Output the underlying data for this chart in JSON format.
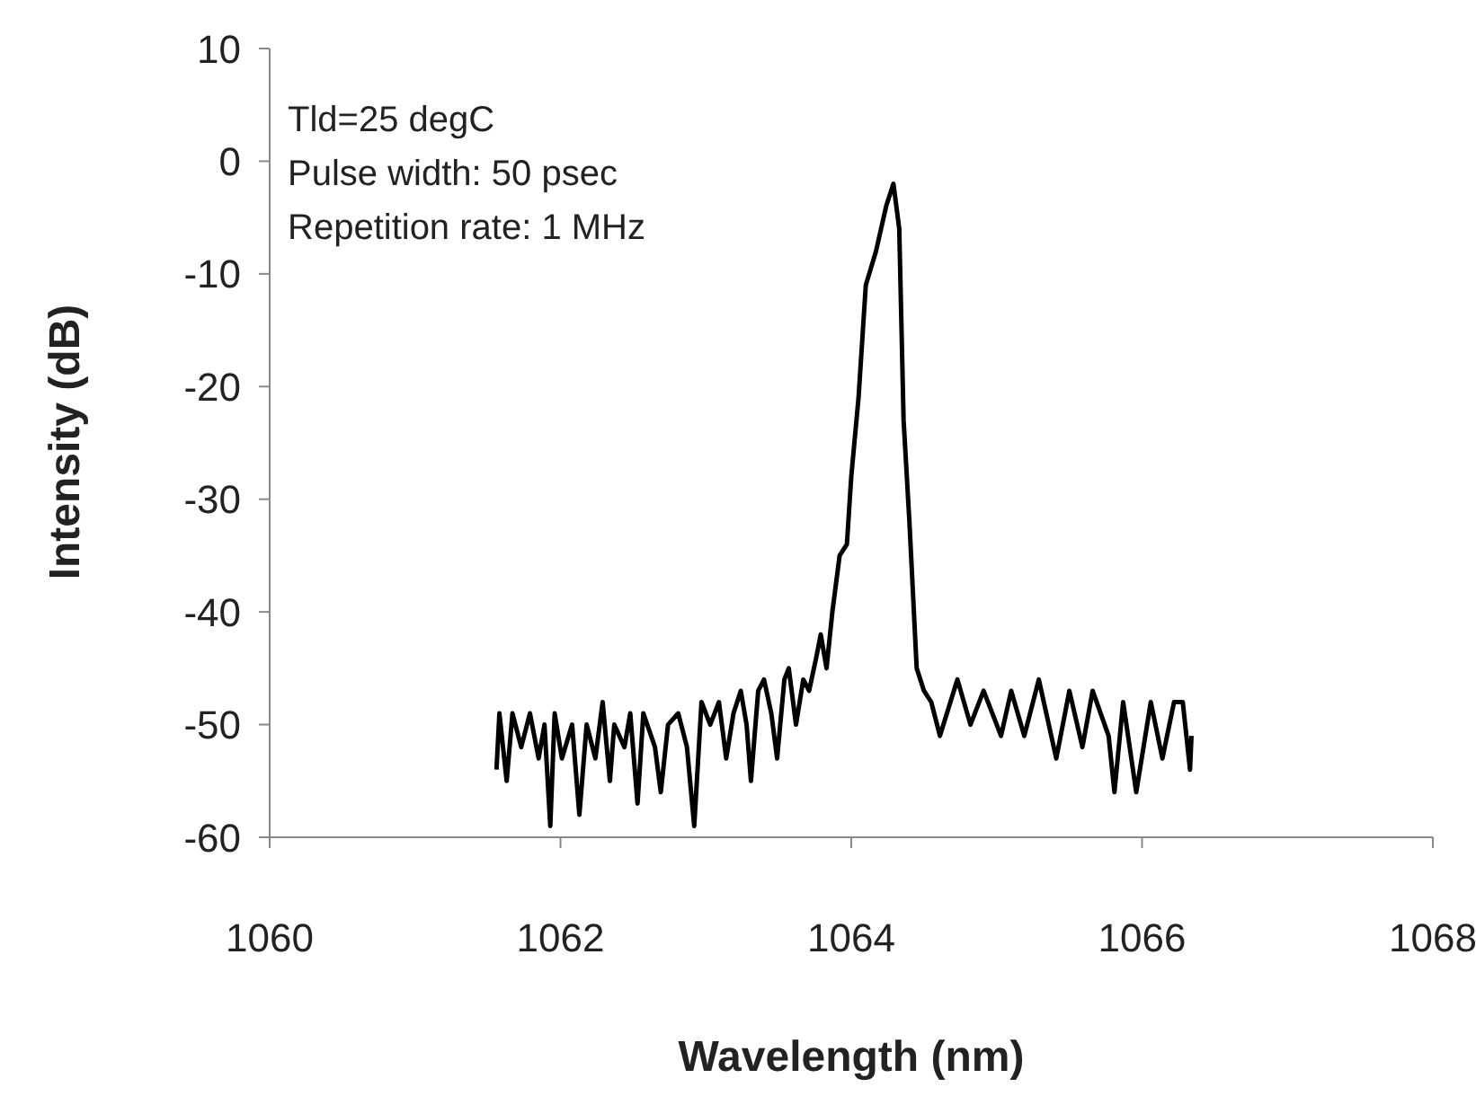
{
  "chart_data": {
    "type": "line",
    "xlabel": "Wavelength (nm)",
    "ylabel": "Intensity (dB)",
    "annotations": [
      "Tld=25 degC",
      "Pulse width: 50 psec",
      "Repetition rate: 1 MHz"
    ],
    "xlim": [
      1060,
      1068
    ],
    "xticks": [
      1060,
      1062,
      1064,
      1066,
      1068
    ],
    "ylim": [
      -60,
      10
    ],
    "yticks": [
      -60,
      -50,
      -40,
      -30,
      -20,
      -10,
      0,
      10
    ],
    "marker": "none",
    "line_style": "solid",
    "series": [
      {
        "color": "#000000",
        "x": [
          1061.56,
          1061.58,
          1061.63,
          1061.67,
          1061.73,
          1061.79,
          1061.85,
          1061.89,
          1061.93,
          1061.96,
          1062.01,
          1062.08,
          1062.13,
          1062.18,
          1062.24,
          1062.29,
          1062.34,
          1062.37,
          1062.44,
          1062.48,
          1062.53,
          1062.57,
          1062.65,
          1062.69,
          1062.74,
          1062.81,
          1062.87,
          1062.92,
          1062.97,
          1063.03,
          1063.09,
          1063.14,
          1063.19,
          1063.24,
          1063.28,
          1063.31,
          1063.36,
          1063.4,
          1063.45,
          1063.49,
          1063.54,
          1063.57,
          1063.62,
          1063.67,
          1063.71,
          1063.76,
          1063.79,
          1063.83,
          1063.87,
          1063.92,
          1063.97,
          1064.0,
          1064.05,
          1064.1,
          1064.17,
          1064.24,
          1064.29,
          1064.33,
          1064.36,
          1064.4,
          1064.45,
          1064.5,
          1064.55,
          1064.61,
          1064.73,
          1064.82,
          1064.91,
          1065.03,
          1065.1,
          1065.19,
          1065.29,
          1065.41,
          1065.5,
          1065.59,
          1065.66,
          1065.77,
          1065.81,
          1065.87,
          1065.96,
          1066.06,
          1066.14,
          1066.22,
          1066.28,
          1066.33,
          1066.34
        ],
        "values": [
          -54,
          -49,
          -55,
          -49,
          -52,
          -49,
          -53,
          -50,
          -59,
          -49,
          -53,
          -50,
          -58,
          -50,
          -53,
          -48,
          -55,
          -50,
          -52,
          -49,
          -57,
          -49,
          -52,
          -56,
          -50,
          -49,
          -52,
          -59,
          -48,
          -50,
          -48,
          -53,
          -49,
          -47,
          -50,
          -55,
          -47,
          -46,
          -49,
          -53,
          -46,
          -45,
          -50,
          -46,
          -47,
          -44,
          -42,
          -45,
          -40,
          -35,
          -34,
          -28,
          -21,
          -11,
          -8,
          -4,
          -2,
          -6,
          -23,
          -32,
          -45,
          -47,
          -48,
          -51,
          -46,
          -50,
          -47,
          -51,
          -47,
          -51,
          -46,
          -53,
          -47,
          -52,
          -47,
          -51,
          -56,
          -48,
          -56,
          -48,
          -53,
          -48,
          -48,
          -54,
          -51
        ]
      }
    ]
  }
}
